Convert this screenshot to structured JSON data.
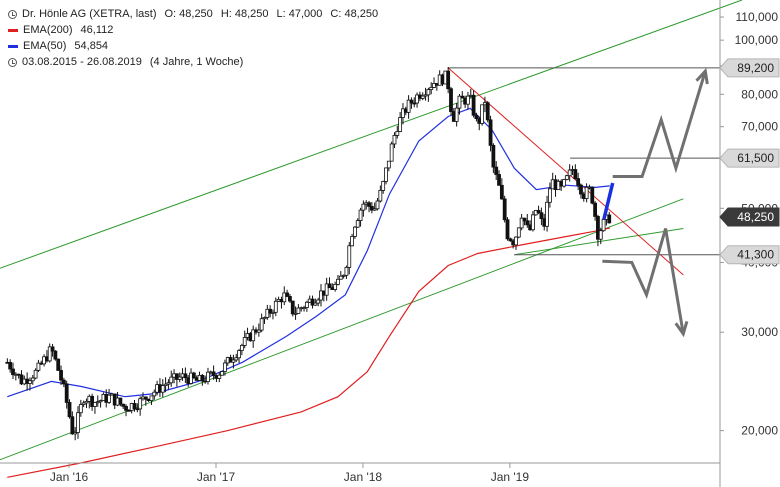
{
  "chart_data": {
    "type": "candlestick",
    "title": "Dr. Hönle AG (XETRA, last)",
    "ohlc": {
      "open": "O: 48,250",
      "high": "H: 48,250",
      "low": "L: 47,000",
      "close": "C: 48,250"
    },
    "date_range": "03.08.2015 - 26.08.2019",
    "period_label": "(4 Jahre, 1 Woche)",
    "legend": [
      {
        "name": "EMA(200)",
        "value": "46,112",
        "color": "#e02020"
      },
      {
        "name": "EMA(50)",
        "value": "54,854",
        "color": "#2030e0"
      }
    ],
    "x_ticks": [
      {
        "label": "Jan '16",
        "t": 0.42
      },
      {
        "label": "Jan '17",
        "t": 1.42
      },
      {
        "label": "Jan '18",
        "t": 2.42
      },
      {
        "label": "Jan '19",
        "t": 3.42
      }
    ],
    "y_scale": "log",
    "ylim": [
      17.5,
      118
    ],
    "y_ticks": [
      {
        "v": 110,
        "label": "110,000"
      },
      {
        "v": 100,
        "label": "100,000"
      },
      {
        "v": 90,
        "label": "90,000"
      },
      {
        "v": 80,
        "label": "80,000"
      },
      {
        "v": 70,
        "label": "70,000"
      },
      {
        "v": 50,
        "label": "50,000"
      },
      {
        "v": 40,
        "label": "40,000"
      },
      {
        "v": 30,
        "label": "30,000"
      },
      {
        "v": 20,
        "label": "20,000"
      }
    ],
    "price_tags": [
      {
        "v": 89.2,
        "label": "89,200",
        "style": "grey"
      },
      {
        "v": 61.5,
        "label": "61,500",
        "style": "grey"
      },
      {
        "v": 48.25,
        "label": "48,250",
        "style": "dark"
      },
      {
        "v": 41.3,
        "label": "41,300",
        "style": "grey"
      }
    ],
    "price_path": [
      [
        0.0,
        26.5
      ],
      [
        0.1,
        24.5
      ],
      [
        0.2,
        25.5
      ],
      [
        0.3,
        28.0
      ],
      [
        0.38,
        24.0
      ],
      [
        0.45,
        19.5
      ],
      [
        0.52,
        23.0
      ],
      [
        0.6,
        22.5
      ],
      [
        0.7,
        23.0
      ],
      [
        0.8,
        22.0
      ],
      [
        0.9,
        22.5
      ],
      [
        1.0,
        23.5
      ],
      [
        1.1,
        24.5
      ],
      [
        1.2,
        25.0
      ],
      [
        1.3,
        24.5
      ],
      [
        1.45,
        25.5
      ],
      [
        1.55,
        27.5
      ],
      [
        1.7,
        30.5
      ],
      [
        1.8,
        33.0
      ],
      [
        1.88,
        35.0
      ],
      [
        1.95,
        32.5
      ],
      [
        2.05,
        34.0
      ],
      [
        2.15,
        35.5
      ],
      [
        2.25,
        36.5
      ],
      [
        2.3,
        39.0
      ],
      [
        2.35,
        46.0
      ],
      [
        2.42,
        51.0
      ],
      [
        2.5,
        50.0
      ],
      [
        2.55,
        54.0
      ],
      [
        2.6,
        62.0
      ],
      [
        2.65,
        70.0
      ],
      [
        2.72,
        76.0
      ],
      [
        2.8,
        80.0
      ],
      [
        2.9,
        84.0
      ],
      [
        2.98,
        86.0
      ],
      [
        3.0,
        83.0
      ],
      [
        3.03,
        72.0
      ],
      [
        3.08,
        78.0
      ],
      [
        3.15,
        78.5
      ],
      [
        3.2,
        70.0
      ],
      [
        3.25,
        78.0
      ],
      [
        3.3,
        60.0
      ],
      [
        3.35,
        54.0
      ],
      [
        3.4,
        45.0
      ],
      [
        3.45,
        43.5
      ],
      [
        3.5,
        49.0
      ],
      [
        3.55,
        45.0
      ],
      [
        3.6,
        50.0
      ],
      [
        3.65,
        46.0
      ],
      [
        3.7,
        56.0
      ],
      [
        3.77,
        54.0
      ],
      [
        3.85,
        59.0
      ],
      [
        3.92,
        53.0
      ],
      [
        3.97,
        54.0
      ],
      [
        4.02,
        45.0
      ],
      [
        4.06,
        47.0
      ],
      [
        4.1,
        48.25
      ]
    ],
    "ema200": [
      [
        0.0,
        16.5
      ],
      [
        0.5,
        17.5
      ],
      [
        1.0,
        18.7
      ],
      [
        1.5,
        20.0
      ],
      [
        2.0,
        21.6
      ],
      [
        2.25,
        23.0
      ],
      [
        2.45,
        25.5
      ],
      [
        2.6,
        29.5
      ],
      [
        2.8,
        35.5
      ],
      [
        3.0,
        39.5
      ],
      [
        3.2,
        41.5
      ],
      [
        3.5,
        43.0
      ],
      [
        3.8,
        44.5
      ],
      [
        4.0,
        45.5
      ],
      [
        4.1,
        46.1
      ]
    ],
    "ema50": [
      [
        0.0,
        23.0
      ],
      [
        0.3,
        24.5
      ],
      [
        0.5,
        24.0
      ],
      [
        0.8,
        23.0
      ],
      [
        1.0,
        23.3
      ],
      [
        1.3,
        24.5
      ],
      [
        1.6,
        26.5
      ],
      [
        1.9,
        29.5
      ],
      [
        2.1,
        32.0
      ],
      [
        2.3,
        35.0
      ],
      [
        2.45,
        42.0
      ],
      [
        2.6,
        53.0
      ],
      [
        2.8,
        66.0
      ],
      [
        3.0,
        73.0
      ],
      [
        3.15,
        75.5
      ],
      [
        3.3,
        69.0
      ],
      [
        3.45,
        59.0
      ],
      [
        3.6,
        54.0
      ],
      [
        3.8,
        55.0
      ],
      [
        4.0,
        54.5
      ],
      [
        4.1,
        54.85
      ]
    ],
    "trend_lines": [
      {
        "color": "#2e9a2e",
        "pts": [
          [
            -0.55,
            35.0
          ],
          [
            5.0,
            118.0
          ]
        ]
      },
      {
        "color": "#2e9a2e",
        "pts": [
          [
            -0.55,
            15.8
          ],
          [
            4.6,
            52.0
          ]
        ]
      },
      {
        "color": "#2e9a2e",
        "pts": [
          [
            3.45,
            41.3
          ],
          [
            4.6,
            46.0
          ]
        ]
      },
      {
        "color": "#e02020",
        "pts": [
          [
            3.0,
            89.2
          ],
          [
            4.6,
            38.0
          ]
        ]
      }
    ],
    "levels": [
      {
        "v": 89.2,
        "from": 3.0
      },
      {
        "v": 61.5,
        "from": 3.83
      },
      {
        "v": 41.3,
        "from": 3.45
      }
    ],
    "projections": [
      {
        "color": "#1830e0",
        "pts": [
          [
            4.06,
            47.8
          ],
          [
            4.12,
            55.5
          ]
        ],
        "arrow": false
      },
      {
        "color": "#707070",
        "pts": [
          [
            4.12,
            57.0
          ],
          [
            4.32,
            57.0
          ],
          [
            4.45,
            72.0
          ],
          [
            4.55,
            59.0
          ],
          [
            4.75,
            88.0
          ]
        ],
        "arrow": true
      },
      {
        "color": "#707070",
        "pts": [
          [
            4.05,
            40.2
          ],
          [
            4.25,
            40.0
          ],
          [
            4.35,
            35.0
          ],
          [
            4.48,
            46.0
          ],
          [
            4.6,
            29.8
          ]
        ],
        "arrow": true
      }
    ]
  }
}
